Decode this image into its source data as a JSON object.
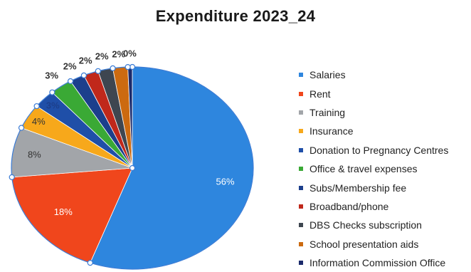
{
  "chart_data": {
    "type": "pie",
    "title": "Expenditure 2023_24",
    "categories": [
      "Salaries",
      "Rent",
      "Training",
      "Insurance",
      "Donation to Pregnancy Centres",
      "Office & travel expenses",
      "Subs/Membership fee",
      "Broadband/phone",
      "DBS Checks subscription",
      "School presentation aids",
      "Information Commission Office"
    ],
    "values": [
      56,
      18,
      8,
      4,
      3,
      3,
      2,
      2,
      2,
      2,
      0
    ],
    "labels": [
      "56%",
      "18%",
      "8%",
      "4%",
      "3%",
      "3%",
      "2%",
      "2%",
      "2%",
      "2%",
      "0%"
    ],
    "colors": [
      "#2e86de",
      "#f0461c",
      "#a2a5a9",
      "#f7a81b",
      "#1f4fa8",
      "#3aa935",
      "#1c3f8c",
      "#c0281b",
      "#3e4650",
      "#cc6a10",
      "#1b2a6b"
    ],
    "legend_position": "right"
  }
}
